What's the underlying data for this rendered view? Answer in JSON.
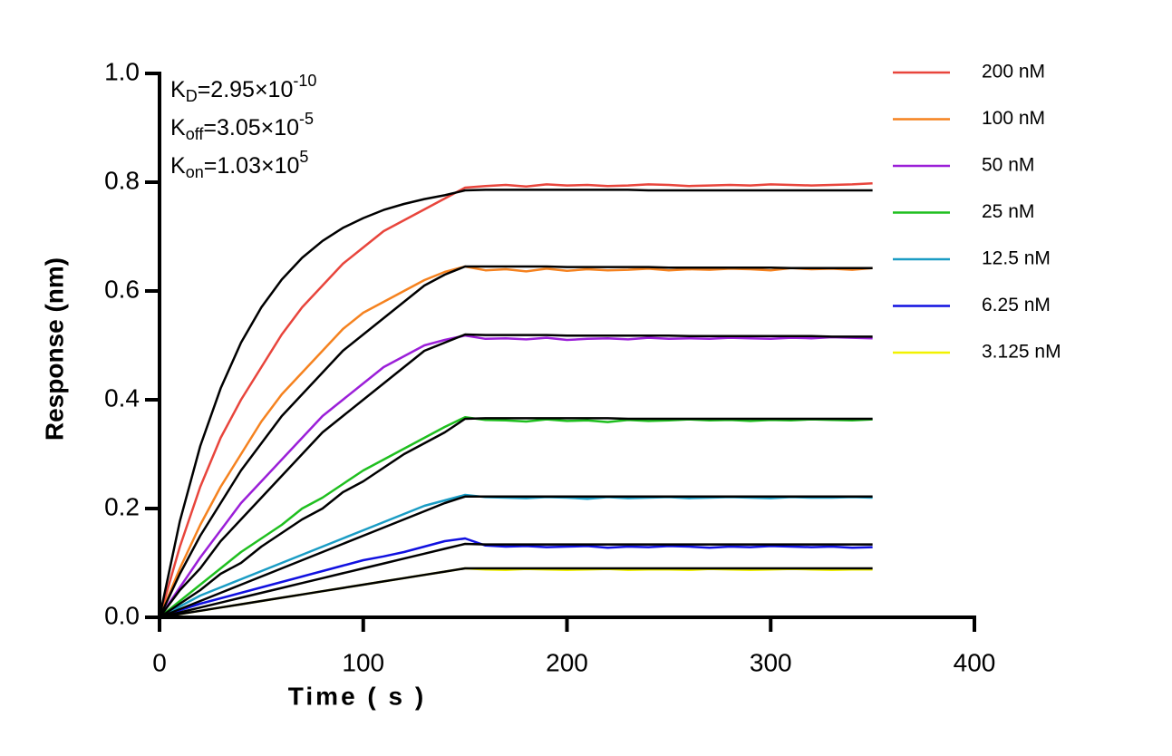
{
  "chart_data": {
    "type": "line",
    "x_label": "Time ( s )",
    "y_label": "Response (nm)",
    "annotations": [
      {
        "symbol": "K",
        "sub": "D",
        "text": "=2.95×10",
        "sup": "-10"
      },
      {
        "symbol": "K",
        "sub": "off",
        "text": "=3.05×10",
        "sup": "-5"
      },
      {
        "symbol": "K",
        "sub": "on",
        "text": "=1.03×10",
        "sup": "5"
      }
    ],
    "x": [
      0,
      10,
      20,
      30,
      40,
      50,
      60,
      70,
      80,
      90,
      100,
      110,
      120,
      130,
      140,
      150,
      160,
      170,
      180,
      190,
      200,
      210,
      220,
      230,
      240,
      250,
      260,
      270,
      280,
      290,
      300,
      310,
      320,
      330,
      340,
      350
    ],
    "xlim": [
      0,
      400
    ],
    "xticks": [
      0,
      100,
      200,
      300,
      400
    ],
    "ylim": [
      0,
      1
    ],
    "yticks": [
      {
        "value": 0,
        "label": "0.0"
      },
      0.2,
      0.4,
      0.6,
      0.8,
      {
        "value": 1,
        "label": "1.0"
      }
    ],
    "legend": "right",
    "series": [
      {
        "name": "200 nM",
        "color": "#e8453c",
        "values": [
          0,
          0.13,
          0.24,
          0.33,
          0.4,
          0.46,
          0.52,
          0.57,
          0.61,
          0.65,
          0.68,
          0.71,
          0.73,
          0.75,
          0.77,
          0.79,
          0.793,
          0.795,
          0.792,
          0.796,
          0.794,
          0.795,
          0.793,
          0.794,
          0.796,
          0.795,
          0.793,
          0.794,
          0.795,
          0.794,
          0.796,
          0.795,
          0.794,
          0.795,
          0.796,
          0.798
        ]
      },
      {
        "name": "100 nM",
        "color": "#f5821f",
        "values": [
          0,
          0.09,
          0.17,
          0.24,
          0.3,
          0.36,
          0.41,
          0.45,
          0.49,
          0.53,
          0.56,
          0.58,
          0.6,
          0.62,
          0.635,
          0.645,
          0.638,
          0.64,
          0.636,
          0.641,
          0.637,
          0.64,
          0.638,
          0.639,
          0.641,
          0.638,
          0.64,
          0.639,
          0.641,
          0.64,
          0.638,
          0.642,
          0.64,
          0.641,
          0.639,
          0.642
        ]
      },
      {
        "name": "50 nM",
        "color": "#9b1fd8",
        "values": [
          0,
          0.055,
          0.11,
          0.16,
          0.21,
          0.25,
          0.29,
          0.33,
          0.37,
          0.4,
          0.43,
          0.46,
          0.48,
          0.5,
          0.51,
          0.518,
          0.512,
          0.513,
          0.511,
          0.514,
          0.51,
          0.512,
          0.513,
          0.511,
          0.514,
          0.512,
          0.513,
          0.512,
          0.514,
          0.513,
          0.512,
          0.514,
          0.513,
          0.515,
          0.514,
          0.513
        ]
      },
      {
        "name": "25 nM",
        "color": "#1fbf1f",
        "values": [
          0,
          0.03,
          0.06,
          0.09,
          0.12,
          0.145,
          0.17,
          0.2,
          0.22,
          0.245,
          0.27,
          0.29,
          0.31,
          0.33,
          0.35,
          0.368,
          0.363,
          0.362,
          0.36,
          0.364,
          0.361,
          0.362,
          0.359,
          0.363,
          0.361,
          0.362,
          0.364,
          0.362,
          0.363,
          0.361,
          0.363,
          0.362,
          0.364,
          0.363,
          0.362,
          0.364
        ]
      },
      {
        "name": "12.5 nM",
        "color": "#1a9cc4",
        "values": [
          0,
          0.02,
          0.04,
          0.055,
          0.07,
          0.085,
          0.1,
          0.115,
          0.13,
          0.145,
          0.16,
          0.175,
          0.19,
          0.205,
          0.215,
          0.225,
          0.221,
          0.22,
          0.219,
          0.221,
          0.22,
          0.218,
          0.221,
          0.219,
          0.22,
          0.221,
          0.219,
          0.22,
          0.221,
          0.22,
          0.219,
          0.221,
          0.22,
          0.22,
          0.221,
          0.22
        ]
      },
      {
        "name": "6.25 nM",
        "color": "#1010e0",
        "values": [
          0,
          0.013,
          0.025,
          0.035,
          0.045,
          0.055,
          0.065,
          0.075,
          0.085,
          0.095,
          0.105,
          0.112,
          0.12,
          0.13,
          0.14,
          0.145,
          0.132,
          0.13,
          0.131,
          0.129,
          0.13,
          0.131,
          0.128,
          0.13,
          0.129,
          0.131,
          0.13,
          0.128,
          0.13,
          0.129,
          0.131,
          0.13,
          0.129,
          0.13,
          0.128,
          0.129
        ]
      },
      {
        "name": "3.125 nM",
        "color": "#f2f200",
        "values": [
          0,
          0.006,
          0.012,
          0.018,
          0.024,
          0.03,
          0.036,
          0.042,
          0.048,
          0.054,
          0.06,
          0.066,
          0.072,
          0.078,
          0.084,
          0.09,
          0.088,
          0.087,
          0.089,
          0.088,
          0.087,
          0.088,
          0.089,
          0.087,
          0.088,
          0.088,
          0.087,
          0.089,
          0.088,
          0.087,
          0.088,
          0.089,
          0.088,
          0.087,
          0.088,
          0.088
        ]
      }
    ],
    "fits": [
      {
        "color": "#000000",
        "values": [
          0,
          0.177,
          0.315,
          0.421,
          0.505,
          0.57,
          0.621,
          0.661,
          0.692,
          0.716,
          0.734,
          0.749,
          0.76,
          0.769,
          0.776,
          0.785,
          0.786,
          0.786,
          0.786,
          0.786,
          0.786,
          0.786,
          0.786,
          0.786,
          0.785,
          0.785,
          0.785,
          0.785,
          0.785,
          0.785,
          0.785,
          0.785,
          0.785,
          0.785,
          0.785,
          0.785
        ]
      },
      {
        "color": "#000000",
        "values": [
          0,
          0.08,
          0.15,
          0.21,
          0.27,
          0.32,
          0.37,
          0.41,
          0.45,
          0.49,
          0.52,
          0.55,
          0.58,
          0.61,
          0.63,
          0.645,
          0.645,
          0.645,
          0.645,
          0.645,
          0.644,
          0.644,
          0.644,
          0.644,
          0.644,
          0.643,
          0.643,
          0.643,
          0.643,
          0.643,
          0.643,
          0.642,
          0.642,
          0.642,
          0.642,
          0.642
        ]
      },
      {
        "color": "#000000",
        "values": [
          0,
          0.05,
          0.09,
          0.14,
          0.18,
          0.22,
          0.26,
          0.3,
          0.34,
          0.37,
          0.4,
          0.43,
          0.46,
          0.49,
          0.505,
          0.52,
          0.519,
          0.519,
          0.519,
          0.519,
          0.518,
          0.518,
          0.518,
          0.518,
          0.518,
          0.518,
          0.517,
          0.517,
          0.517,
          0.517,
          0.517,
          0.517,
          0.517,
          0.516,
          0.516,
          0.516
        ]
      },
      {
        "color": "#000000",
        "values": [
          0,
          0.025,
          0.05,
          0.08,
          0.1,
          0.13,
          0.155,
          0.18,
          0.2,
          0.23,
          0.25,
          0.275,
          0.3,
          0.32,
          0.34,
          0.365,
          0.366,
          0.366,
          0.366,
          0.366,
          0.366,
          0.366,
          0.366,
          0.365,
          0.365,
          0.365,
          0.365,
          0.365,
          0.365,
          0.365,
          0.365,
          0.365,
          0.365,
          0.365,
          0.365,
          0.365
        ]
      },
      {
        "color": "#000000",
        "values": [
          0,
          0.015,
          0.03,
          0.045,
          0.06,
          0.075,
          0.09,
          0.105,
          0.12,
          0.135,
          0.15,
          0.165,
          0.18,
          0.195,
          0.21,
          0.222,
          0.222,
          0.222,
          0.222,
          0.222,
          0.222,
          0.222,
          0.222,
          0.222,
          0.222,
          0.222,
          0.222,
          0.222,
          0.222,
          0.222,
          0.222,
          0.222,
          0.222,
          0.222,
          0.222,
          0.222
        ]
      },
      {
        "color": "#000000",
        "values": [
          0,
          0.009,
          0.018,
          0.027,
          0.036,
          0.045,
          0.054,
          0.063,
          0.072,
          0.081,
          0.09,
          0.099,
          0.108,
          0.117,
          0.126,
          0.135,
          0.134,
          0.134,
          0.134,
          0.134,
          0.134,
          0.134,
          0.134,
          0.134,
          0.134,
          0.134,
          0.134,
          0.134,
          0.134,
          0.134,
          0.134,
          0.134,
          0.134,
          0.134,
          0.134,
          0.134
        ]
      },
      {
        "color": "#000000",
        "values": [
          0,
          0.006,
          0.012,
          0.018,
          0.024,
          0.03,
          0.036,
          0.042,
          0.048,
          0.054,
          0.06,
          0.066,
          0.072,
          0.078,
          0.084,
          0.09,
          0.09,
          0.09,
          0.09,
          0.09,
          0.09,
          0.09,
          0.09,
          0.09,
          0.09,
          0.09,
          0.09,
          0.09,
          0.09,
          0.09,
          0.09,
          0.09,
          0.09,
          0.09,
          0.09,
          0.09
        ]
      }
    ]
  }
}
